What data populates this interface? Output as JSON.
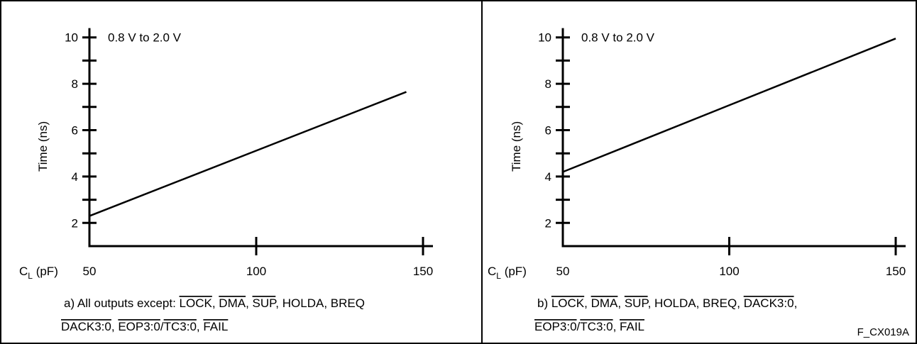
{
  "figure_id": "F_CX019A",
  "chart_data": [
    {
      "type": "line",
      "annotation": "0.8 V to 2.0 V",
      "xlabel": "C",
      "xlabel_sub": "L",
      "xlabel_unit": " (pF)",
      "ylabel": "Time (ns)",
      "xlim": [
        50,
        150
      ],
      "ylim": [
        1,
        11
      ],
      "xticks_major": [
        50,
        100,
        150
      ],
      "yticks_labeled": [
        2,
        4,
        6,
        8,
        10
      ],
      "yticks_minor": [
        3,
        5,
        7,
        9
      ],
      "grid": false,
      "series": [
        {
          "x": [
            50,
            145
          ],
          "y": [
            2.3,
            7.65
          ]
        }
      ],
      "caption": {
        "line1": [
          {
            "text": "a) All outputs except: ",
            "overline": false
          },
          {
            "text": "LOCK",
            "overline": true
          },
          {
            "text": ", ",
            "overline": false
          },
          {
            "text": "DMA",
            "overline": true
          },
          {
            "text": ", ",
            "overline": false
          },
          {
            "text": "SUP",
            "overline": true
          },
          {
            "text": ", HOLDA, BREQ",
            "overline": false
          }
        ],
        "line2": [
          {
            "text": "DACK3:0",
            "overline": true
          },
          {
            "text": ", ",
            "overline": false
          },
          {
            "text": "EOP3:0",
            "overline": true
          },
          {
            "text": "/",
            "overline": false
          },
          {
            "text": "TC3:0",
            "overline": true
          },
          {
            "text": ", ",
            "overline": false
          },
          {
            "text": "FAIL",
            "overline": true
          }
        ]
      }
    },
    {
      "type": "line",
      "annotation": "0.8 V to 2.0 V",
      "xlabel": "C",
      "xlabel_sub": "L",
      "xlabel_unit": " (pF)",
      "ylabel": "Time (ns)",
      "xlim": [
        50,
        150
      ],
      "ylim": [
        1,
        11
      ],
      "xticks_major": [
        50,
        100,
        150
      ],
      "yticks_labeled": [
        2,
        4,
        6,
        8,
        10
      ],
      "yticks_minor": [
        3,
        5,
        7,
        9
      ],
      "grid": false,
      "series": [
        {
          "x": [
            50,
            150
          ],
          "y": [
            4.2,
            9.95
          ]
        }
      ],
      "caption": {
        "line1": [
          {
            "text": "b) ",
            "overline": false
          },
          {
            "text": "LOCK",
            "overline": true
          },
          {
            "text": ", ",
            "overline": false
          },
          {
            "text": "DMA",
            "overline": true
          },
          {
            "text": ", ",
            "overline": false
          },
          {
            "text": "SUP",
            "overline": true
          },
          {
            "text": ", HOLDA, BREQ, ",
            "overline": false
          },
          {
            "text": "DACK3:0",
            "overline": true
          },
          {
            "text": ",",
            "overline": false
          }
        ],
        "line2": [
          {
            "text": "EOP3:0",
            "overline": true
          },
          {
            "text": "/",
            "overline": false
          },
          {
            "text": "TC3:0",
            "overline": true
          },
          {
            "text": ", ",
            "overline": false
          },
          {
            "text": "FAIL",
            "overline": true
          }
        ]
      }
    }
  ]
}
